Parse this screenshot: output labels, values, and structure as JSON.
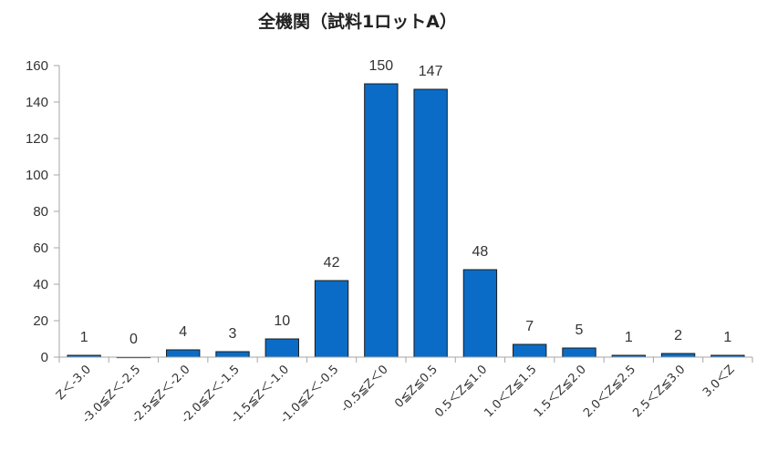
{
  "chart_data": {
    "type": "bar",
    "title": "全機関（試料1ロットA）",
    "xlabel": "",
    "ylabel": "",
    "ylim": [
      0,
      160
    ],
    "yticks": [
      0,
      20,
      40,
      60,
      80,
      100,
      120,
      140,
      160
    ],
    "grid": false,
    "legend": "none",
    "bar_color": "#0a6cc6",
    "categories": [
      "Z＜-3.0",
      "-3.0≦Z＜-2.5",
      "-2.5≦Z＜-2.0",
      "-2.0≦Z＜-1.5",
      "-1.5≦Z＜-1.0",
      "-1.0≦Z＜-0.5",
      "-0.5≦Z＜0",
      "0≦Z≦0.5",
      "0.5＜Z≦1.0",
      "1.0＜Z≦1.5",
      "1.5＜Z≦2.0",
      "2.0＜Z≦2.5",
      "2.5＜Z≦3.0",
      "3.0＜Z"
    ],
    "values": [
      1,
      0,
      4,
      3,
      10,
      42,
      150,
      147,
      48,
      7,
      5,
      1,
      2,
      1
    ]
  }
}
